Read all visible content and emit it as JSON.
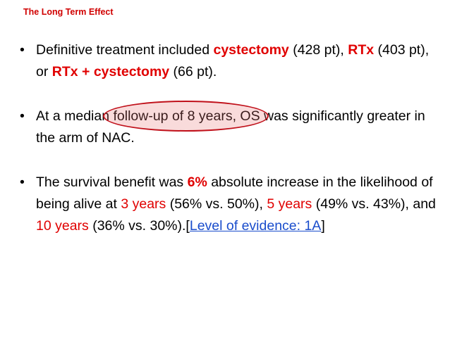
{
  "title": "The Long Term Effect",
  "bullet_marker": "•",
  "bullets": [
    {
      "p1": "Definitive treatment included ",
      "h1": "cystectomy",
      "p2": " (428 pt), ",
      "h2": "RTx",
      "p3": " (403 pt), or ",
      "h3": "RTx + cystectomy",
      "p4": " (66 pt)."
    },
    {
      "p1": "At a median ",
      "highlight": "follow-up of 8 years,",
      "p2": " OS was significantly greater in the arm of NAC."
    },
    {
      "p1": "The survival benefit was ",
      "h1": "6%",
      "p2": " absolute increase in the likelihood of being alive at ",
      "h2": "3 years",
      "p3": " (56% vs. 50%), ",
      "h3": "5 years",
      "p4": " (49% vs. 43%), and ",
      "h4": "10 years",
      "p5": " (36% vs. 30%).[",
      "link": "Level of evidence: 1A",
      "p6": "]"
    }
  ],
  "colors": {
    "title": "#d00000",
    "emphasis": "#e00000",
    "link": "#1a4dcc",
    "highlight_oval": "#c0101a"
  }
}
